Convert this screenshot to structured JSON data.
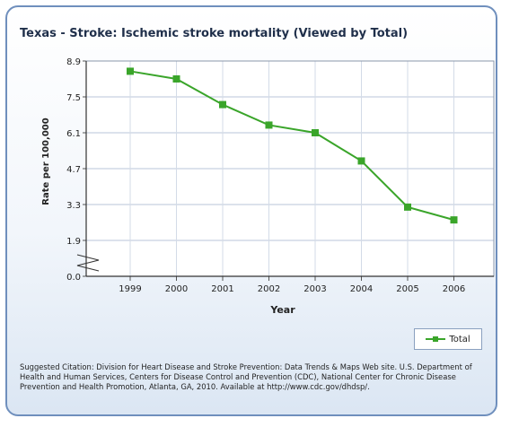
{
  "chart_data": {
    "type": "line",
    "title": "Texas - Stroke: Ischemic stroke mortality (Viewed by Total)",
    "xlabel": "Year",
    "ylabel": "Rate per 100,000",
    "categories": [
      "1999",
      "2000",
      "2001",
      "2002",
      "2003",
      "2004",
      "2005",
      "2006"
    ],
    "series": [
      {
        "name": "Total",
        "values": [
          8.5,
          8.2,
          7.2,
          6.4,
          6.1,
          5.0,
          3.2,
          2.7
        ]
      }
    ],
    "yticks": [
      0.0,
      1.9,
      3.3,
      4.7,
      6.1,
      7.5,
      8.9
    ],
    "ytick_labels": [
      "0.0",
      "1.9",
      "3.3",
      "4.7",
      "6.1",
      "7.5",
      "8.9"
    ],
    "ylim": [
      0.0,
      8.9
    ],
    "axis_break": true,
    "grid": true,
    "legend_position": "bottom-right",
    "series_color": "#3aa52a"
  },
  "citation": "Suggested Citation: Division for Heart Disease and Stroke Prevention: Data Trends & Maps Web site. U.S. Department of Health and Human Services, Centers for Disease Control and Prevention (CDC), National Center for Chronic Disease Prevention and Health Promotion, Atlanta, GA, 2010. Available at http://www.cdc.gov/dhdsp/."
}
